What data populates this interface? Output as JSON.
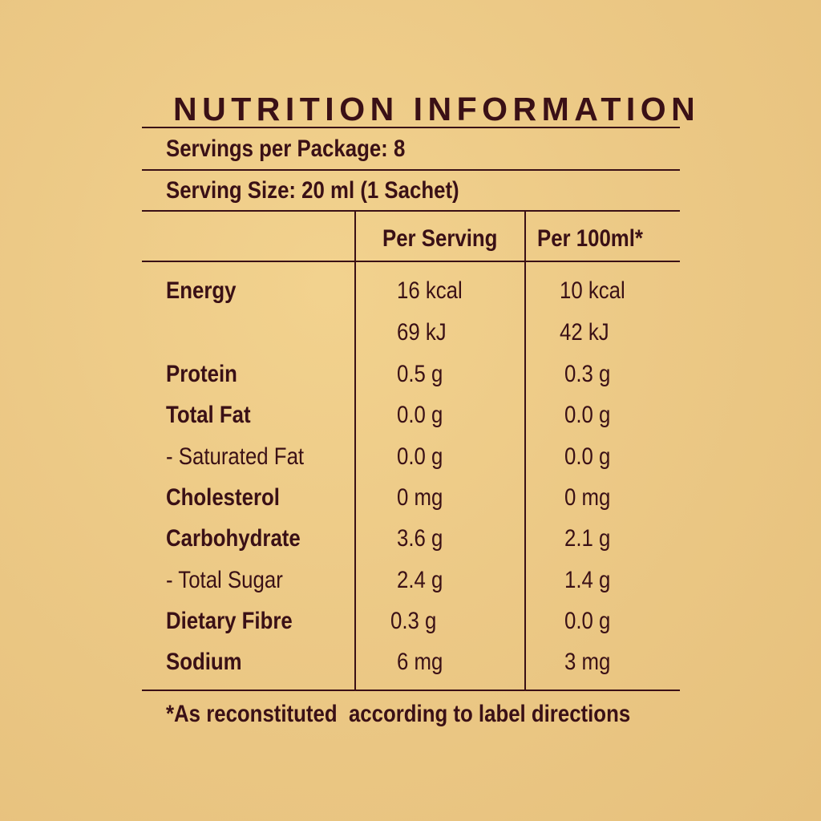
{
  "title": "NUTRITION INFORMATION",
  "servings_per_package": "Servings per Package: 8",
  "serving_size": "Serving Size: 20 ml (1 Sachet)",
  "columns": {
    "per_serving": "Per Serving",
    "per_100ml": "Per 100ml*"
  },
  "rows": [
    {
      "label": "Energy",
      "per_serving": "16 kcal",
      "per_100ml": "10 kcal",
      "bold": true
    },
    {
      "label": "",
      "per_serving": "69 kJ",
      "per_100ml": "42 kJ",
      "bold": false
    },
    {
      "label": "Protein",
      "per_serving": "0.5 g",
      "per_100ml": "0.3 g",
      "bold": true
    },
    {
      "label": "Total Fat",
      "per_serving": "0.0 g",
      "per_100ml": "0.0 g",
      "bold": true
    },
    {
      "label": "- Saturated Fat",
      "per_serving": "0.0 g",
      "per_100ml": "0.0 g",
      "bold": false
    },
    {
      "label": "Cholesterol",
      "per_serving": "0 mg",
      "per_100ml": "0 mg",
      "bold": true
    },
    {
      "label": "Carbohydrate",
      "per_serving": "3.6 g",
      "per_100ml": "2.1 g",
      "bold": true
    },
    {
      "label": "- Total Sugar",
      "per_serving": "2.4 g",
      "per_100ml": "1.4 g",
      "bold": false
    },
    {
      "label": "Dietary Fibre",
      "per_serving": "0.3 g",
      "per_100ml": "0.0 g",
      "bold": true
    },
    {
      "label": "Sodium",
      "per_serving": "6 mg",
      "per_100ml": "3 mg",
      "bold": true
    }
  ],
  "footnote": "*As reconstituted  according to label directions"
}
